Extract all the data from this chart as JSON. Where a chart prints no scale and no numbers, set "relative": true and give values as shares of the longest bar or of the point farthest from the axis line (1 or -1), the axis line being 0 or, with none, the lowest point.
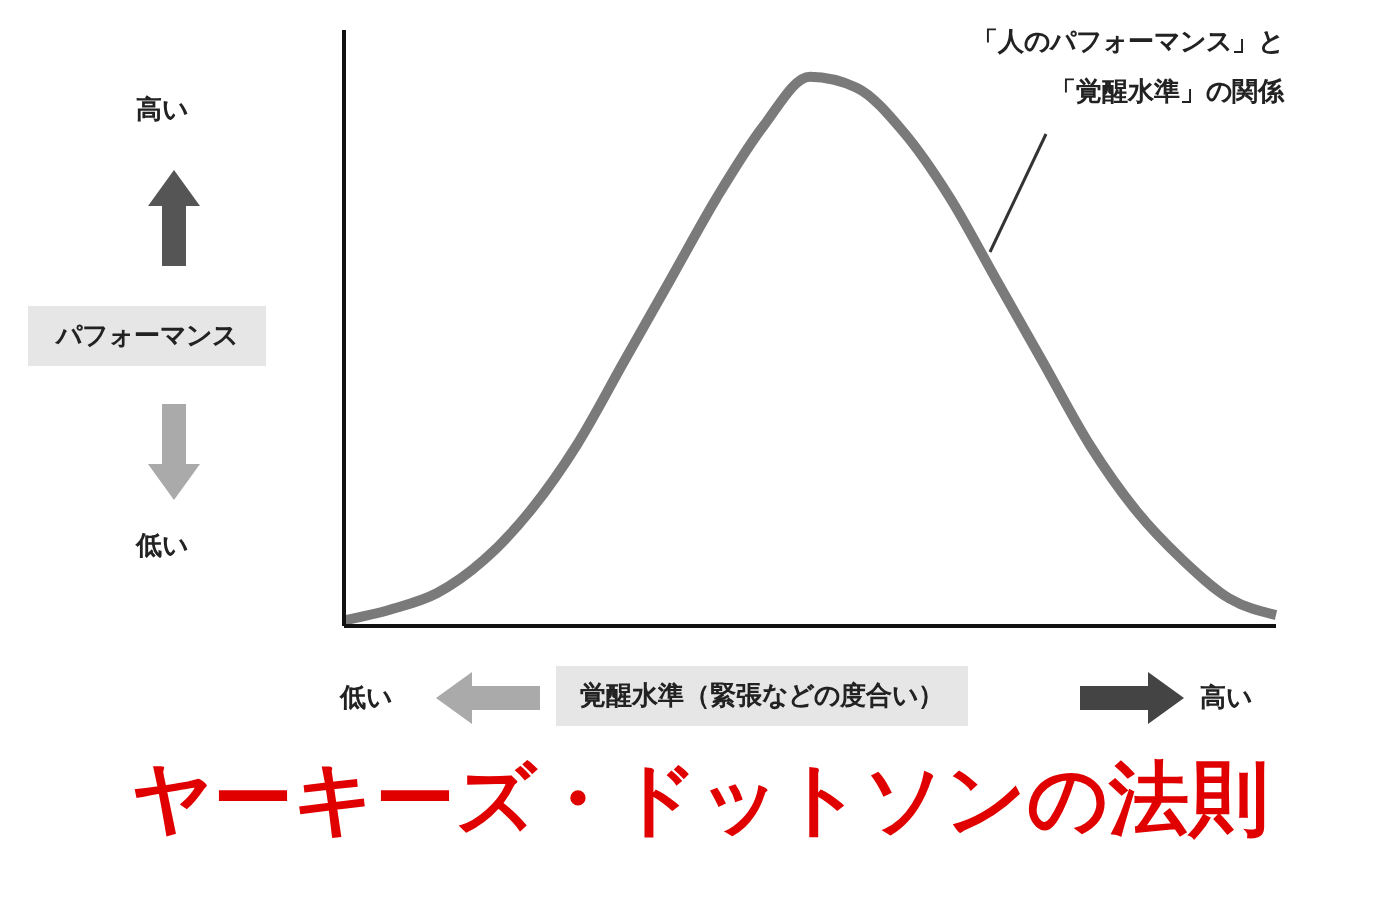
{
  "chart_data": {
    "type": "line",
    "relative": true,
    "title": "ヤーキーズ・ドットソンの法則",
    "xlabel": "覚醒水準（緊張などの度合い）",
    "ylabel": "パフォーマンス",
    "annotations": [
      "高い",
      "低い",
      "低い",
      "高い",
      "「人のパフォーマンス」と",
      "「覚醒水準」の関係"
    ],
    "categories": [
      null,
      null,
      null,
      null,
      null,
      null,
      null,
      null,
      null,
      null,
      null,
      null,
      null,
      null,
      null,
      null,
      null,
      null,
      null,
      null,
      null
    ],
    "series": [
      {
        "color": "#7a7a7a",
        "values": [
          0.01,
          0.03,
          0.06,
          0.12,
          0.21,
          0.33,
          0.48,
          0.63,
          0.78,
          0.91,
          1,
          0.98,
          0.9,
          0.78,
          0.63,
          0.48,
          0.33,
          0.21,
          0.12,
          0.05,
          0.02
        ]
      }
    ],
    "grid": false,
    "legend": false,
    "marker": "none",
    "line_style": "solid"
  }
}
